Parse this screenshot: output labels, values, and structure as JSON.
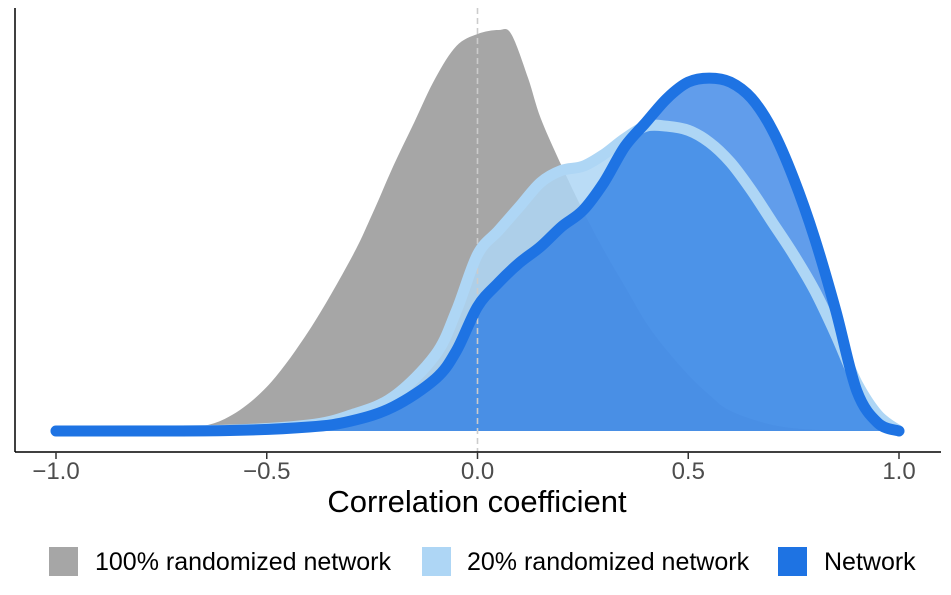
{
  "chart_data": {
    "type": "area",
    "title": "",
    "xlabel": "Correlation coefficient",
    "ylabel": "",
    "xlim": [
      -1.0,
      1.0
    ],
    "ylim": [
      0,
      1
    ],
    "x_ticks": [
      {
        "value": -1.0,
        "label": "−1.0"
      },
      {
        "value": -0.5,
        "label": "−0.5"
      },
      {
        "value": 0.0,
        "label": "0.0"
      },
      {
        "value": 0.5,
        "label": "0.5"
      },
      {
        "value": 1.0,
        "label": "1.0"
      }
    ],
    "y_axis_ticks_shown": false,
    "grid": false,
    "reference_line": {
      "x": 0.0,
      "style": "dashed"
    },
    "legend_position": "bottom",
    "series": [
      {
        "name": "100% randomized network",
        "color": "#a6a6a6",
        "x": [
          -1.0,
          -0.8,
          -0.7,
          -0.6,
          -0.5,
          -0.4,
          -0.3,
          -0.25,
          -0.2,
          -0.15,
          -0.1,
          -0.05,
          0.0,
          0.05,
          0.08,
          0.12,
          0.15,
          0.2,
          0.25,
          0.3,
          0.35,
          0.4,
          0.45,
          0.5,
          0.55,
          0.6,
          0.7,
          0.8,
          0.9,
          1.0
        ],
        "y": [
          0,
          0.001,
          0.005,
          0.03,
          0.11,
          0.25,
          0.43,
          0.54,
          0.66,
          0.77,
          0.88,
          0.96,
          0.99,
          1.0,
          0.99,
          0.88,
          0.78,
          0.66,
          0.55,
          0.45,
          0.36,
          0.27,
          0.2,
          0.14,
          0.09,
          0.05,
          0.015,
          0.003,
          0.001,
          0
        ]
      },
      {
        "name": "20% randomized network",
        "color": "#aed6f5",
        "x": [
          -1.0,
          -0.6,
          -0.4,
          -0.3,
          -0.2,
          -0.1,
          -0.05,
          0.0,
          0.05,
          0.1,
          0.15,
          0.2,
          0.25,
          0.3,
          0.35,
          0.4,
          0.45,
          0.5,
          0.55,
          0.6,
          0.65,
          0.7,
          0.75,
          0.8,
          0.85,
          0.9,
          0.95,
          1.0
        ],
        "y": [
          0,
          0.002,
          0.015,
          0.04,
          0.085,
          0.19,
          0.3,
          0.44,
          0.5,
          0.56,
          0.62,
          0.65,
          0.66,
          0.69,
          0.73,
          0.76,
          0.76,
          0.75,
          0.72,
          0.67,
          0.6,
          0.52,
          0.44,
          0.35,
          0.24,
          0.12,
          0.04,
          0
        ]
      },
      {
        "name": "Network",
        "color": "#1e73e3",
        "x": [
          -1.0,
          -0.6,
          -0.4,
          -0.3,
          -0.2,
          -0.1,
          -0.05,
          0.0,
          0.05,
          0.1,
          0.15,
          0.2,
          0.25,
          0.3,
          0.35,
          0.4,
          0.45,
          0.5,
          0.55,
          0.6,
          0.65,
          0.7,
          0.75,
          0.8,
          0.85,
          0.9,
          0.95,
          1.0
        ],
        "y": [
          0,
          0.001,
          0.01,
          0.025,
          0.06,
          0.13,
          0.2,
          0.31,
          0.37,
          0.42,
          0.46,
          0.51,
          0.55,
          0.62,
          0.71,
          0.77,
          0.83,
          0.87,
          0.88,
          0.87,
          0.83,
          0.75,
          0.63,
          0.48,
          0.3,
          0.1,
          0.02,
          0
        ]
      }
    ]
  }
}
